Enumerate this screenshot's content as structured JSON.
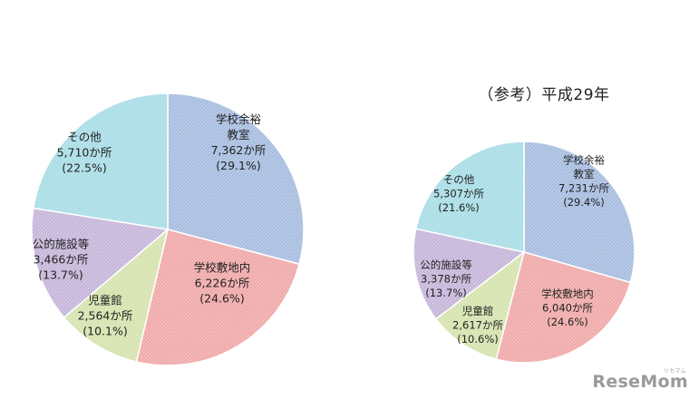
{
  "chart_data": [
    {
      "type": "pie",
      "title": "",
      "slices": [
        {
          "label": [
            "学校余裕",
            "教室"
          ],
          "count": "7,362か所",
          "pct": "(29.1%)",
          "value": 29.1,
          "color": "#a7bde0"
        },
        {
          "label": [
            "学校敷地内"
          ],
          "count": "6,226か所",
          "pct": "(24.6%)",
          "value": 24.6,
          "color": "#f0a9a9"
        },
        {
          "label": [
            "児童館"
          ],
          "count": "2,564か所",
          "pct": "(10.1%)",
          "value": 10.1,
          "color": "#d6e3ae"
        },
        {
          "label": [
            "公的施設等"
          ],
          "count": "3,466か所",
          "pct": "(13.7%)",
          "value": 13.7,
          "color": "#c6b6da"
        },
        {
          "label": [
            "その他"
          ],
          "count": "5,710か所",
          "pct": "(22.5%)",
          "value": 22.5,
          "color": "#a9dde6"
        }
      ]
    },
    {
      "type": "pie",
      "title": "（参考）平成29年",
      "slices": [
        {
          "label": [
            "学校余裕",
            "教室"
          ],
          "count": "7,231か所",
          "pct": "(29.4%)",
          "value": 29.4,
          "color": "#a7bde0"
        },
        {
          "label": [
            "学校敷地内"
          ],
          "count": "6,040か所",
          "pct": "(24.6%)",
          "value": 24.6,
          "color": "#f0a9a9"
        },
        {
          "label": [
            "児童館"
          ],
          "count": "2,617か所",
          "pct": "(10.6%)",
          "value": 10.6,
          "color": "#d6e3ae"
        },
        {
          "label": [
            "公的施設等"
          ],
          "count": "3,378か所",
          "pct": "(13.7%)",
          "value": 13.7,
          "color": "#c6b6da"
        },
        {
          "label": [
            "その他"
          ],
          "count": "5,307か所",
          "pct": "(21.6%)",
          "value": 21.6,
          "color": "#a9dde6"
        }
      ]
    }
  ],
  "watermark": "ReseMom",
  "watermark_small": "リセマム"
}
